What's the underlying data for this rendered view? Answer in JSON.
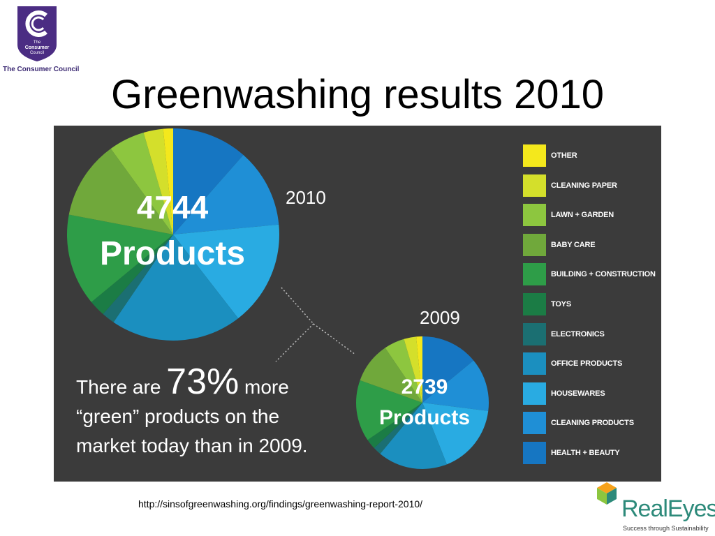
{
  "header": {
    "logo_line1": "The",
    "logo_line2": "Consumer",
    "logo_line3": "Council",
    "logo_caption": "The Consumer Council",
    "title": "Greenwashing results 2010"
  },
  "colors": {
    "panel_bg": "#3b3b3b",
    "logo_purple": "#4b2d83",
    "realeyes_teal": "#2d8a7a"
  },
  "chart_data": {
    "type": "pie",
    "title": "",
    "legend": {
      "placement": "right"
    },
    "categories": [
      "OTHER",
      "CLEANING PAPER",
      "LAWN + GARDEN",
      "BABY CARE",
      "BUILDING + CONSTRUCTION",
      "TOYS",
      "ELECTRONICS",
      "OFFICE PRODUCTS",
      "HOUSEWARES",
      "CLEANING PRODUCTS",
      "HEALTH + BEAUTY"
    ],
    "colors": [
      "#f4e81c",
      "#d4df2b",
      "#8dc63f",
      "#70a83b",
      "#2e9d48",
      "#1b7c45",
      "#1b6f72",
      "#1b8fbf",
      "#29abe2",
      "#1f8fd6",
      "#1676c2"
    ],
    "series": [
      {
        "name": "2010",
        "total": 4744,
        "values": [
          1.5,
          3.0,
          5.5,
          12.0,
          14.0,
          2.5,
          2.0,
          20.0,
          16.0,
          12.0,
          11.5
        ]
      },
      {
        "name": "2009",
        "total": 2739,
        "values": [
          1.5,
          3.0,
          5.0,
          10.0,
          15.0,
          2.5,
          2.0,
          17.0,
          17.0,
          13.0,
          14.0
        ]
      }
    ]
  },
  "labels": {
    "year_2010": "2010",
    "year_2009": "2009",
    "big_count": "4744",
    "big_unit": "Products",
    "small_count": "2739",
    "small_unit": "Products"
  },
  "statement": {
    "part1": "There are ",
    "stat": "73%",
    "part2": " more",
    "line2": "“green” products on the",
    "line3": "market today than in 2009."
  },
  "footer": {
    "source_url": "http://sinsofgreenwashing.org/findings/greenwashing-report-2010/",
    "brand_name": "RealEyes",
    "brand_tagline": "Success through Sustainability"
  }
}
